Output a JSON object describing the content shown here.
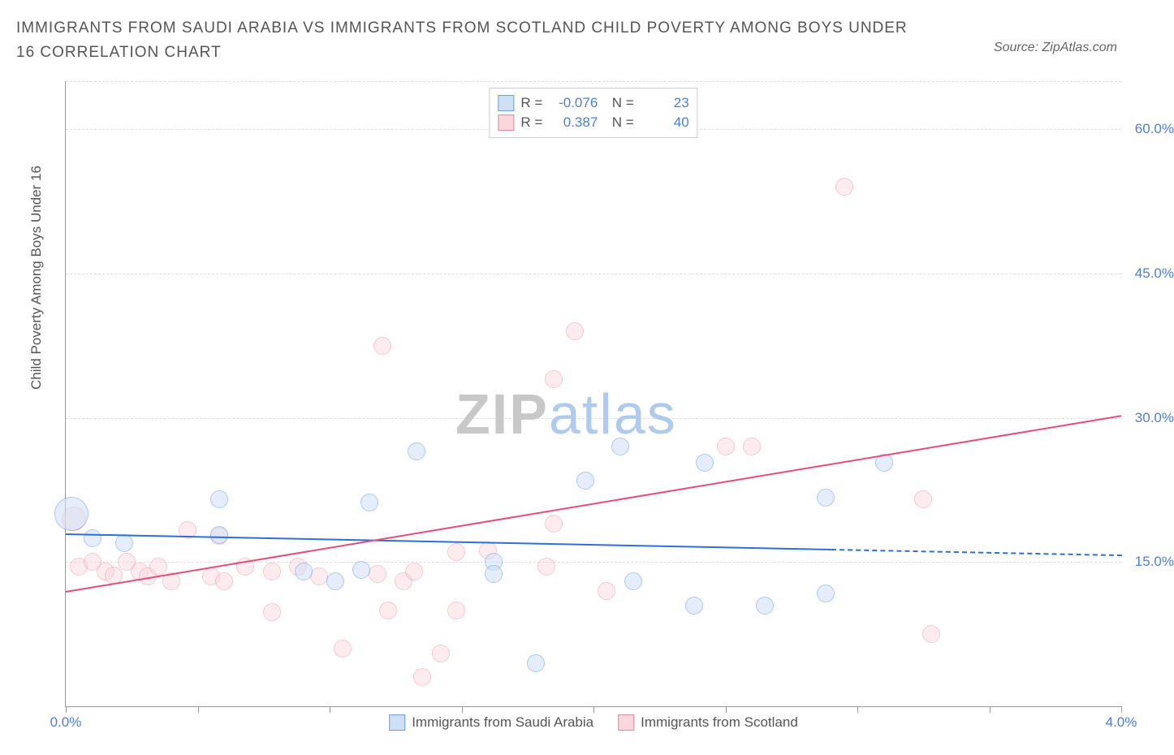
{
  "header": {
    "title": "IMMIGRANTS FROM SAUDI ARABIA VS IMMIGRANTS FROM SCOTLAND CHILD POVERTY AMONG BOYS UNDER 16 CORRELATION CHART",
    "source": "Source: ZipAtlas.com"
  },
  "watermark": {
    "zip": "ZIP",
    "atlas": "atlas"
  },
  "chart": {
    "type": "scatter",
    "ylabel": "Child Poverty Among Boys Under 16",
    "xlim": [
      0,
      4
    ],
    "ylim": [
      0,
      65
    ],
    "y_gridlines": [
      15,
      30,
      45,
      60,
      65
    ],
    "y_tick_labels": [
      "15.0%",
      "30.0%",
      "45.0%",
      "60.0%"
    ],
    "y_tick_values": [
      15,
      30,
      45,
      60
    ],
    "x_ticks": [
      0,
      0.5,
      1,
      1.5,
      2,
      2.5,
      3,
      3.5,
      4
    ],
    "x_tick_labels": {
      "0": "0.0%",
      "4": "4.0%"
    },
    "background_color": "#ffffff",
    "grid_color": "#dddddd",
    "axis_color": "#999999",
    "tick_label_color": "#4a7fe0",
    "series": {
      "blue": {
        "label": "Immigrants from Saudi Arabia",
        "fill": "#cfe0f5",
        "stroke": "#6d9fe2",
        "fill_opacity": 0.55,
        "R": "-0.076",
        "N": "23",
        "trend": {
          "x1": 0.0,
          "y1": 18.0,
          "x2": 2.9,
          "y2": 16.4,
          "color": "#2e6fd6",
          "dash_extend_x": 4.0,
          "dash_extend_y": 15.8
        },
        "points": [
          {
            "x": 0.02,
            "y": 20,
            "r": 20
          },
          {
            "x": 0.1,
            "y": 17.5,
            "r": 10
          },
          {
            "x": 0.22,
            "y": 17,
            "r": 10
          },
          {
            "x": 0.58,
            "y": 21.5,
            "r": 10
          },
          {
            "x": 0.58,
            "y": 17.8,
            "r": 10
          },
          {
            "x": 0.9,
            "y": 14,
            "r": 10
          },
          {
            "x": 1.02,
            "y": 13,
            "r": 10
          },
          {
            "x": 1.12,
            "y": 14.2,
            "r": 10
          },
          {
            "x": 1.15,
            "y": 21.2,
            "r": 10
          },
          {
            "x": 1.33,
            "y": 26.5,
            "r": 10
          },
          {
            "x": 1.62,
            "y": 15,
            "r": 10
          },
          {
            "x": 1.62,
            "y": 13.8,
            "r": 10
          },
          {
            "x": 1.78,
            "y": 4.5,
            "r": 10
          },
          {
            "x": 1.97,
            "y": 23.5,
            "r": 10
          },
          {
            "x": 2.1,
            "y": 27,
            "r": 10
          },
          {
            "x": 2.15,
            "y": 13,
            "r": 10
          },
          {
            "x": 2.38,
            "y": 10.5,
            "r": 10
          },
          {
            "x": 2.42,
            "y": 25.3,
            "r": 10
          },
          {
            "x": 2.65,
            "y": 10.5,
            "r": 10
          },
          {
            "x": 2.88,
            "y": 21.7,
            "r": 10
          },
          {
            "x": 2.88,
            "y": 11.7,
            "r": 10
          },
          {
            "x": 3.1,
            "y": 25.3,
            "r": 10
          }
        ]
      },
      "pink": {
        "label": "Immigrants from Scotland",
        "fill": "#f9d7dd",
        "stroke": "#e68ba0",
        "fill_opacity": 0.45,
        "R": "0.387",
        "N": "40",
        "trend": {
          "x1": 0.0,
          "y1": 12.0,
          "x2": 4.0,
          "y2": 30.3,
          "color": "#e64e7a"
        },
        "points": [
          {
            "x": 0.03,
            "y": 19.5,
            "r": 14
          },
          {
            "x": 0.05,
            "y": 14.5,
            "r": 10
          },
          {
            "x": 0.1,
            "y": 15,
            "r": 10
          },
          {
            "x": 0.15,
            "y": 14,
            "r": 10
          },
          {
            "x": 0.18,
            "y": 13.6,
            "r": 10
          },
          {
            "x": 0.23,
            "y": 15,
            "r": 10
          },
          {
            "x": 0.28,
            "y": 14,
            "r": 10
          },
          {
            "x": 0.31,
            "y": 13.5,
            "r": 10
          },
          {
            "x": 0.35,
            "y": 14.5,
            "r": 10
          },
          {
            "x": 0.4,
            "y": 13,
            "r": 10
          },
          {
            "x": 0.46,
            "y": 18.3,
            "r": 10
          },
          {
            "x": 0.55,
            "y": 13.5,
            "r": 10
          },
          {
            "x": 0.6,
            "y": 13,
            "r": 10
          },
          {
            "x": 0.58,
            "y": 17.7,
            "r": 10
          },
          {
            "x": 0.68,
            "y": 14.5,
            "r": 10
          },
          {
            "x": 0.78,
            "y": 14,
            "r": 10
          },
          {
            "x": 0.78,
            "y": 9.8,
            "r": 10
          },
          {
            "x": 0.88,
            "y": 14.5,
            "r": 10
          },
          {
            "x": 0.96,
            "y": 13.5,
            "r": 10
          },
          {
            "x": 1.05,
            "y": 6,
            "r": 10
          },
          {
            "x": 1.18,
            "y": 13.8,
            "r": 10
          },
          {
            "x": 1.2,
            "y": 37.5,
            "r": 10
          },
          {
            "x": 1.22,
            "y": 10,
            "r": 10
          },
          {
            "x": 1.28,
            "y": 13,
            "r": 10
          },
          {
            "x": 1.32,
            "y": 14,
            "r": 10
          },
          {
            "x": 1.35,
            "y": 3,
            "r": 10
          },
          {
            "x": 1.42,
            "y": 5.5,
            "r": 10
          },
          {
            "x": 1.48,
            "y": 16,
            "r": 10
          },
          {
            "x": 1.48,
            "y": 10,
            "r": 10
          },
          {
            "x": 1.6,
            "y": 16.2,
            "r": 10
          },
          {
            "x": 1.82,
            "y": 14.5,
            "r": 10
          },
          {
            "x": 1.85,
            "y": 34,
            "r": 10
          },
          {
            "x": 1.85,
            "y": 19,
            "r": 10
          },
          {
            "x": 1.93,
            "y": 39,
            "r": 10
          },
          {
            "x": 2.05,
            "y": 12,
            "r": 10
          },
          {
            "x": 2.5,
            "y": 27,
            "r": 10
          },
          {
            "x": 2.6,
            "y": 27,
            "r": 10
          },
          {
            "x": 2.95,
            "y": 54,
            "r": 10
          },
          {
            "x": 3.25,
            "y": 21.5,
            "r": 10
          },
          {
            "x": 3.28,
            "y": 7.5,
            "r": 10
          }
        ]
      }
    }
  }
}
